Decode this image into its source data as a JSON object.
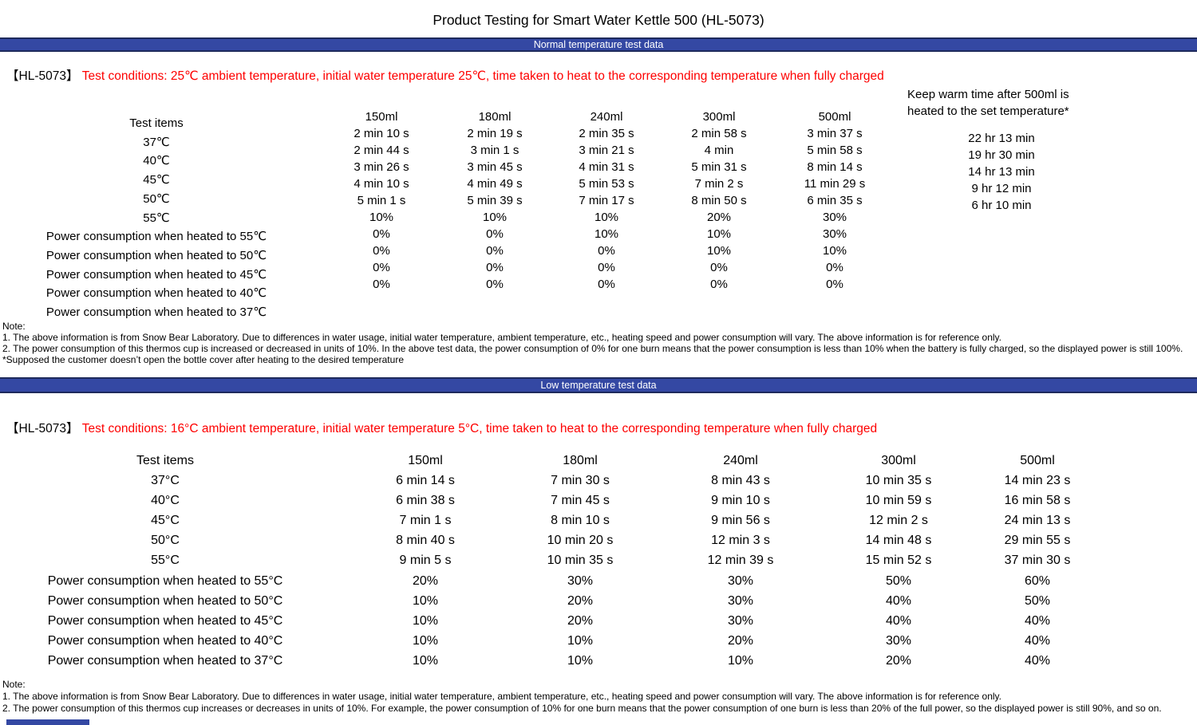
{
  "page_title": "Product Testing for Smart Water Kettle 500 (HL-5073)",
  "colors": {
    "banner_bg": "#3448a3",
    "banner_border": "#1e2a5c",
    "conditions_red": "#fe0000"
  },
  "normal_section": {
    "banner_label": "Normal temperature test data",
    "model_tag": "【HL-5073】",
    "conditions_text": "Test conditions: 25℃ ambient temperature, initial water temperature 25℃, time taken to heat to the corresponding temperature when fully charged",
    "table": {
      "row_labels": [
        "Test items",
        "37℃",
        "40℃",
        "45℃",
        "50℃",
        "55℃",
        "Power consumption when heated to 55℃",
        "Power consumption when heated to 50℃",
        "Power consumption when heated to 45℃",
        "Power consumption when heated to 40℃",
        "Power consumption when heated to 37℃"
      ],
      "columns": [
        {
          "header": "150ml",
          "values": [
            "2 min 10 s",
            "2 min 44 s",
            "3 min 26 s",
            "4 min 10 s",
            "5 min 1 s",
            "10%",
            "0%",
            "0%",
            "0%",
            "0%"
          ]
        },
        {
          "header": "180ml",
          "values": [
            "2 min 19 s",
            "3 min 1 s",
            "3 min 45 s",
            "4 min 49 s",
            "5 min 39 s",
            "10%",
            "0%",
            "0%",
            "0%",
            "0%"
          ]
        },
        {
          "header": "240ml",
          "values": [
            "2 min 35 s",
            "3 min 21 s",
            "4 min 31 s",
            "5 min 53 s",
            "7 min 17 s",
            "10%",
            "10%",
            "0%",
            "0%",
            "0%"
          ]
        },
        {
          "header": "300ml",
          "values": [
            "2 min 58 s",
            "4 min",
            "5 min 31 s",
            "7 min 2 s",
            "8 min 50 s",
            "20%",
            "10%",
            "10%",
            "0%",
            "0%"
          ]
        },
        {
          "header": "500ml",
          "values": [
            "3 min 37 s",
            "5 min 58 s",
            "8 min 14 s",
            "11 min 29 s",
            "6 min 35 s",
            "30%",
            "30%",
            "10%",
            "0%",
            "0%"
          ]
        }
      ],
      "keep_warm": {
        "header_line1": "Keep warm time after 500ml is",
        "header_line2": "heated to the set temperature*",
        "values": [
          "22 hr 13 min",
          "19 hr 30 min",
          "14 hr 13 min",
          "9 hr 12 min",
          "6 hr 10 min"
        ]
      }
    },
    "notes": {
      "heading": "Note:",
      "line1": "1. The above information is from Snow Bear Laboratory. Due to differences in water usage, initial water temperature, ambient temperature, etc., heating speed and power consumption will vary. The above information is for reference only.",
      "line2": "2. The power consumption of this thermos cup is increased or decreased in units of 10%. In the above test data, the power consumption of 0% for one burn means that the power consumption is less than 10% when the battery is fully charged, so the displayed power is still 100%.",
      "line3": "*Supposed the customer doesn’t open the bottle cover after heating to the desired temperature"
    }
  },
  "low_section": {
    "banner_label": "Low temperature test data",
    "model_tag": "【HL-5073】",
    "conditions_text": "Test conditions: 16°C ambient temperature, initial water temperature 5°C, time taken to heat to the corresponding temperature when fully charged",
    "table": {
      "row_labels": [
        "Test items",
        "37°C",
        "40°C",
        "45°C",
        "50°C",
        "55°C",
        "Power consumption when heated to 55°C",
        "Power consumption when heated to 50°C",
        "Power consumption when heated to 45°C",
        "Power consumption when heated to 40°C",
        "Power consumption when heated to 37°C"
      ],
      "columns": [
        {
          "header": "150ml",
          "values": [
            "6 min 14 s",
            "6 min 38 s",
            "7 min 1 s",
            "8 min 40 s",
            "9 min 5 s",
            "20%",
            "10%",
            "10%",
            "10%",
            "10%"
          ]
        },
        {
          "header": "180ml",
          "values": [
            "7 min 30 s",
            "7 min 45 s",
            "8 min 10 s",
            "10 min 20 s",
            "10 min 35 s",
            "30%",
            "20%",
            "20%",
            "10%",
            "10%"
          ]
        },
        {
          "header": "240ml",
          "values": [
            "8 min 43 s",
            "9 min 10 s",
            "9 min 56 s",
            "12 min 3 s",
            "12 min 39 s",
            "30%",
            "30%",
            "30%",
            "20%",
            "10%"
          ]
        },
        {
          "header": "300ml",
          "values": [
            "10 min 35 s",
            "10 min 59 s",
            "12 min 2 s",
            "14 min 48 s",
            "15 min 52 s",
            "50%",
            "40%",
            "40%",
            "30%",
            "20%"
          ]
        },
        {
          "header": "500ml",
          "values": [
            "14 min 23 s",
            "16 min 58 s",
            "24 min 13 s",
            "29 min 55 s",
            "37 min 30 s",
            "60%",
            "50%",
            "40%",
            "40%",
            "40%"
          ]
        }
      ]
    },
    "notes": {
      "heading": "Note:",
      "line1": "1. The above information is from Snow Bear Laboratory. Due to differences in water usage, initial water temperature, ambient temperature, etc., heating speed and power consumption will vary. The above information is for reference only.",
      "line2": "2. The power consumption of this thermos cup increases or decreases in units of 10%. For example, the power consumption of 10% for one burn means that the power consumption of one burn is less than 20% of the full power, so the displayed power is still 90%, and so on."
    }
  }
}
